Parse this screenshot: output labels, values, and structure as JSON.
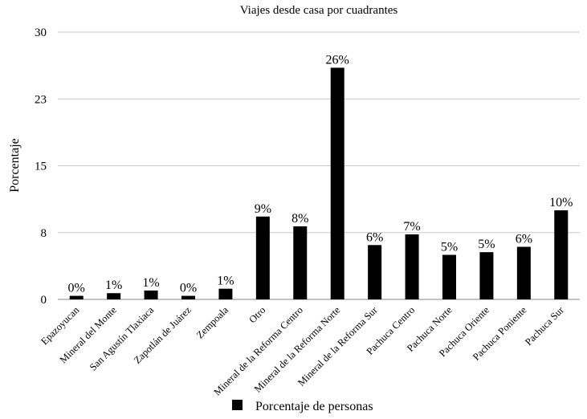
{
  "chart_data": {
    "type": "bar",
    "title": "Viajes desde casa por cuadrantes",
    "xlabel": "",
    "ylabel": "Porcentaje",
    "ylim": [
      0,
      30
    ],
    "yticks": [
      "0",
      "8",
      "15",
      "23",
      "30"
    ],
    "grid": true,
    "legend_position": "bottom",
    "categories": [
      "Epazoyucan",
      "Mineral del Monte",
      "San Agustín Tlaxiaca",
      "Zapotlán de Juárez",
      "Zempoala",
      "Otro",
      "Mineral de la Reforma Centro",
      "Mineral de la Reforma Norte",
      "Mineral de la Reforma Sur",
      "Pachuca Centro",
      "Pachuca Norte",
      "Pachuca Oriente",
      "Pachuca Poniente",
      "Pachuca Sur"
    ],
    "series": [
      {
        "name": "Porcentaje de personas",
        "color": "#000000",
        "values": [
          0.4,
          0.7,
          1.0,
          0.4,
          1.2,
          9.3,
          8.2,
          26.0,
          6.1,
          7.3,
          5.0,
          5.3,
          5.9,
          10.0
        ],
        "labels": [
          "0%",
          "1%",
          "1%",
          "0%",
          "1%",
          "9%",
          "8%",
          "26%",
          "6%",
          "7%",
          "5%",
          "5%",
          "6%",
          "10%"
        ]
      }
    ]
  }
}
